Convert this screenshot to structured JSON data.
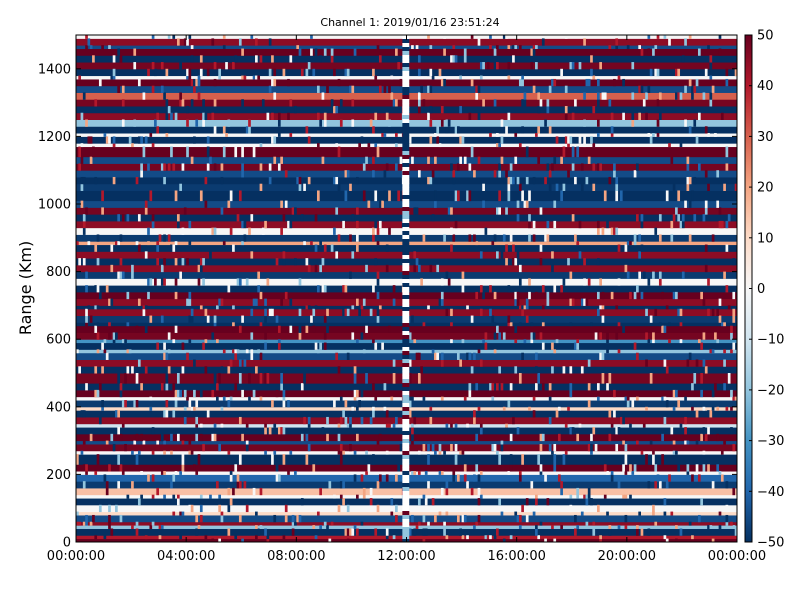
{
  "chart_data": {
    "type": "heatmap",
    "title": "Channel 1: 2019/01/16 23:51:24",
    "xlabel": "",
    "ylabel": "Range (Km)",
    "x_tick_labels": [
      "00:00:00",
      "04:00:00",
      "08:00:00",
      "12:00:00",
      "16:00:00",
      "20:00:00",
      "00:00:00"
    ],
    "x_tick_hours": [
      0,
      4,
      8,
      12,
      16,
      20,
      24
    ],
    "xlim_hours": [
      0,
      24
    ],
    "y_ticks": [
      0,
      200,
      400,
      600,
      800,
      1000,
      1200,
      1400
    ],
    "ylim": [
      0,
      1500
    ],
    "colorbar": {
      "ticks": [
        50,
        40,
        30,
        20,
        10,
        0,
        -10,
        -20,
        -30,
        -40,
        -50
      ],
      "min": -50,
      "max": 50,
      "colormap": [
        "#053061",
        "#2166ac",
        "#4393c3",
        "#92c5de",
        "#d1e5f0",
        "#f7f7f7",
        "#fddbc7",
        "#f4a582",
        "#d6604d",
        "#b2182b",
        "#67001f"
      ]
    },
    "range_bin_km": 10,
    "time_bins": 288,
    "data_gap_hours": [
      11.85,
      12.1
    ],
    "band_values_by_range_km": [
      {
        "from": 0,
        "to": 10,
        "value": 50
      },
      {
        "from": 10,
        "to": 20,
        "value": 40
      },
      {
        "from": 20,
        "to": 40,
        "value": -50
      },
      {
        "from": 40,
        "to": 50,
        "value": -20
      },
      {
        "from": 50,
        "to": 60,
        "value": 45
      },
      {
        "from": 60,
        "to": 80,
        "value": -45
      },
      {
        "from": 80,
        "to": 90,
        "value": 10
      },
      {
        "from": 90,
        "to": 110,
        "value": 0
      },
      {
        "from": 110,
        "to": 130,
        "value": -50
      },
      {
        "from": 130,
        "to": 140,
        "value": 0
      },
      {
        "from": 140,
        "to": 160,
        "value": 15
      },
      {
        "from": 160,
        "to": 180,
        "value": -48
      },
      {
        "from": 180,
        "to": 200,
        "value": -40
      },
      {
        "from": 200,
        "to": 210,
        "value": 0
      },
      {
        "from": 210,
        "to": 230,
        "value": 50
      },
      {
        "from": 230,
        "to": 260,
        "value": -50
      },
      {
        "from": 260,
        "to": 270,
        "value": 0
      },
      {
        "from": 270,
        "to": 290,
        "value": 48
      },
      {
        "from": 290,
        "to": 300,
        "value": -45
      },
      {
        "from": 300,
        "to": 320,
        "value": 50
      },
      {
        "from": 320,
        "to": 340,
        "value": -50
      },
      {
        "from": 340,
        "to": 350,
        "value": -10
      },
      {
        "from": 350,
        "to": 370,
        "value": 45
      },
      {
        "from": 370,
        "to": 390,
        "value": -50
      },
      {
        "from": 390,
        "to": 400,
        "value": 10
      },
      {
        "from": 400,
        "to": 420,
        "value": -48
      },
      {
        "from": 420,
        "to": 430,
        "value": 0
      },
      {
        "from": 430,
        "to": 450,
        "value": 50
      },
      {
        "from": 450,
        "to": 470,
        "value": -50
      },
      {
        "from": 470,
        "to": 500,
        "value": 48
      },
      {
        "from": 500,
        "to": 520,
        "value": -50
      },
      {
        "from": 520,
        "to": 540,
        "value": 45
      },
      {
        "from": 540,
        "to": 560,
        "value": -45
      },
      {
        "from": 560,
        "to": 570,
        "value": -20
      },
      {
        "from": 570,
        "to": 590,
        "value": -50
      },
      {
        "from": 590,
        "to": 600,
        "value": -30
      },
      {
        "from": 600,
        "to": 620,
        "value": 48
      },
      {
        "from": 620,
        "to": 640,
        "value": 50
      },
      {
        "from": 640,
        "to": 650,
        "value": -50
      },
      {
        "from": 650,
        "to": 670,
        "value": -48
      },
      {
        "from": 670,
        "to": 690,
        "value": 45
      },
      {
        "from": 690,
        "to": 700,
        "value": -50
      },
      {
        "from": 700,
        "to": 720,
        "value": 45
      },
      {
        "from": 720,
        "to": 740,
        "value": 50
      },
      {
        "from": 740,
        "to": 760,
        "value": -50
      },
      {
        "from": 760,
        "to": 780,
        "value": 0
      },
      {
        "from": 780,
        "to": 800,
        "value": -48
      },
      {
        "from": 800,
        "to": 820,
        "value": 45
      },
      {
        "from": 820,
        "to": 840,
        "value": -50
      },
      {
        "from": 840,
        "to": 860,
        "value": 45
      },
      {
        "from": 860,
        "to": 880,
        "value": -50
      },
      {
        "from": 880,
        "to": 890,
        "value": 20
      },
      {
        "from": 890,
        "to": 910,
        "value": -48
      },
      {
        "from": 910,
        "to": 930,
        "value": 0
      },
      {
        "from": 930,
        "to": 950,
        "value": 45
      },
      {
        "from": 950,
        "to": 970,
        "value": -50
      },
      {
        "from": 970,
        "to": 990,
        "value": 48
      },
      {
        "from": 990,
        "to": 1010,
        "value": -45
      },
      {
        "from": 1010,
        "to": 1040,
        "value": -50
      },
      {
        "from": 1040,
        "to": 1060,
        "value": -48
      },
      {
        "from": 1060,
        "to": 1080,
        "value": -50
      },
      {
        "from": 1080,
        "to": 1100,
        "value": -45
      },
      {
        "from": 1100,
        "to": 1120,
        "value": 48
      },
      {
        "from": 1120,
        "to": 1140,
        "value": -45
      },
      {
        "from": 1140,
        "to": 1170,
        "value": 50
      },
      {
        "from": 1170,
        "to": 1180,
        "value": 0
      },
      {
        "from": 1180,
        "to": 1200,
        "value": -50
      },
      {
        "from": 1200,
        "to": 1210,
        "value": 0
      },
      {
        "from": 1210,
        "to": 1230,
        "value": -50
      },
      {
        "from": 1230,
        "to": 1250,
        "value": -20
      },
      {
        "from": 1250,
        "to": 1270,
        "value": 45
      },
      {
        "from": 1270,
        "to": 1290,
        "value": -50
      },
      {
        "from": 1290,
        "to": 1310,
        "value": 48
      },
      {
        "from": 1310,
        "to": 1330,
        "value": 30
      },
      {
        "from": 1330,
        "to": 1350,
        "value": -45
      },
      {
        "from": 1350,
        "to": 1370,
        "value": 50
      },
      {
        "from": 1370,
        "to": 1380,
        "value": 0
      },
      {
        "from": 1380,
        "to": 1400,
        "value": -50
      },
      {
        "from": 1400,
        "to": 1420,
        "value": 48
      },
      {
        "from": 1420,
        "to": 1440,
        "value": -50
      },
      {
        "from": 1440,
        "to": 1460,
        "value": 50
      },
      {
        "from": 1460,
        "to": 1470,
        "value": -45
      },
      {
        "from": 1470,
        "to": 1490,
        "value": 45
      },
      {
        "from": 1490,
        "to": 1500,
        "value": 0
      }
    ]
  }
}
